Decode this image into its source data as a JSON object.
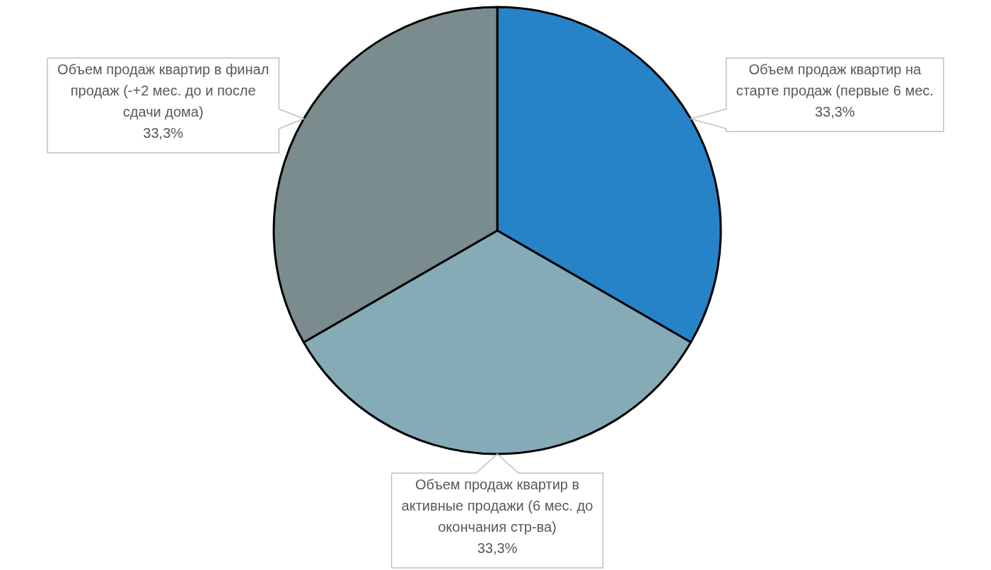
{
  "chart_data": {
    "type": "pie",
    "categories": [
      "Объем продаж квартир на старте продаж (первые 6 мес.",
      "Объем продаж квартир в активные продажи (6 мес. до окончания стр-ва)",
      "Объем продаж квартир в финал продаж (-+2 мес. до и после сдачи дома)"
    ],
    "values": [
      33.3,
      33.3,
      33.3
    ],
    "colors": [
      "#2783c8",
      "#85abb6",
      "#7a8c8e"
    ],
    "value_labels": [
      "33,3%",
      "33,3%",
      "33,3%"
    ]
  }
}
